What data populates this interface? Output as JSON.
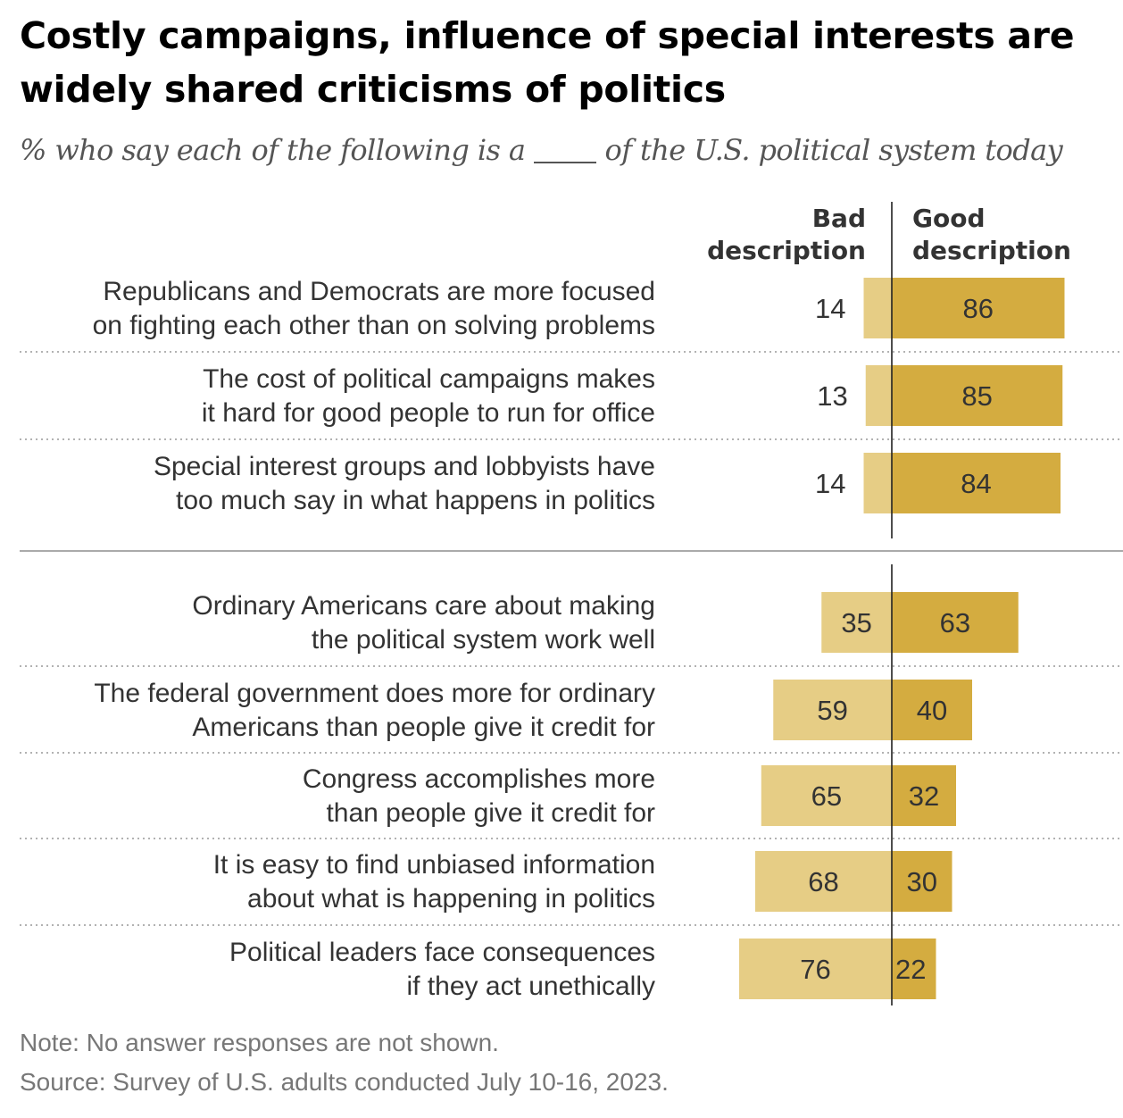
{
  "chart_data": {
    "type": "bar",
    "orientation": "horizontal-diverging",
    "title": "Costly campaigns, influence of special interests are widely shared criticisms of politics",
    "subtitle": "% who say each of the following is a ___ of the U.S. political system today",
    "legend": [
      "Bad description",
      "Good description"
    ],
    "series": [
      {
        "name": "Bad description",
        "color": "#e6cd85"
      },
      {
        "name": "Good description",
        "color": "#d4ac40"
      }
    ],
    "groups": [
      {
        "rows": [
          {
            "label": [
              "Republicans and Democrats are more focused",
              "on fighting each other than on solving problems"
            ],
            "bad": 14,
            "good": 86
          },
          {
            "label": [
              "The cost of political campaigns makes",
              "it hard for good people to run for office"
            ],
            "bad": 13,
            "good": 85
          },
          {
            "label": [
              "Special interest groups and lobbyists have",
              "too much say in what happens in politics"
            ],
            "bad": 14,
            "good": 84
          }
        ]
      },
      {
        "rows": [
          {
            "label": [
              "Ordinary Americans care about making",
              "the political system work well"
            ],
            "bad": 35,
            "good": 63
          },
          {
            "label": [
              "The federal government does more for ordinary",
              "Americans than people give it credit for"
            ],
            "bad": 59,
            "good": 40
          },
          {
            "label": [
              "Congress accomplishes more",
              "than people give it credit for"
            ],
            "bad": 65,
            "good": 32
          },
          {
            "label": [
              "It is easy to find unbiased information",
              "about what is happening in politics"
            ],
            "bad": 68,
            "good": 30
          },
          {
            "label": [
              "Political leaders face consequences",
              "if they act unethically"
            ],
            "bad": 76,
            "good": 22
          }
        ]
      }
    ],
    "axis_range": [
      0,
      100
    ]
  },
  "header": {
    "bad_label": [
      "Bad",
      "description"
    ],
    "good_label": [
      "Good",
      "description"
    ]
  },
  "footer": {
    "note": "Note: No answer responses are not shown.",
    "source": "Source: Survey of U.S. adults conducted July 10-16, 2023."
  }
}
